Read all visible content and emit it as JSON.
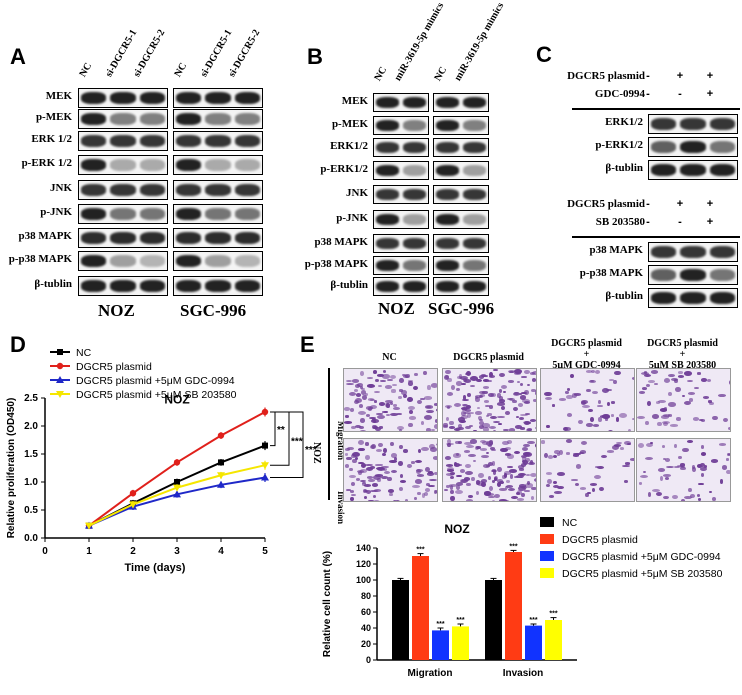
{
  "panels": {
    "A": {
      "label": "A",
      "lanes": [
        "NC",
        "si-DGCR5-1",
        "si-DGCR5-2"
      ],
      "rows": [
        "MEK",
        "p-MEK",
        "ERK 1/2",
        "p-ERK 1/2",
        "JNK",
        "p-JNK",
        "p38 MAPK",
        "p-p38 MAPK",
        "β-tublin"
      ],
      "cells": [
        "NOZ",
        "SGC-996"
      ]
    },
    "B": {
      "label": "B",
      "lanes": [
        "NC",
        "miR-3619-5p mimics"
      ],
      "rows": [
        "MEK",
        "p-MEK",
        "ERK1/2",
        "p-ERK1/2",
        "JNK",
        "p-JNK",
        "p38 MAPK",
        "p-p38 MAPK",
        "β-tublin"
      ],
      "cells": [
        "NOZ",
        "SGC-996"
      ]
    },
    "C": {
      "label": "C",
      "top": {
        "treatments": [
          {
            "name": "DGCR5 plasmid",
            "marks": [
              "-",
              "+",
              "+"
            ]
          },
          {
            "name": "GDC-0994",
            "marks": [
              "-",
              "-",
              "+"
            ]
          }
        ],
        "rows": [
          "ERK1/2",
          "p-ERK1/2",
          "β-tublin"
        ]
      },
      "bottom": {
        "treatments": [
          {
            "name": "DGCR5 plasmid",
            "marks": [
              "-",
              "+",
              "+"
            ]
          },
          {
            "name": "SB 203580",
            "marks": [
              "-",
              "-",
              "+"
            ]
          }
        ],
        "rows": [
          "p38 MAPK",
          "p-p38 MAPK",
          "β-tublin"
        ]
      }
    },
    "D": {
      "label": "D",
      "subtitle": "NOZ",
      "legend": [
        "NC",
        "DGCR5 plasmid",
        "DGCR5 plasmid +5μM GDC-0994",
        "DGCR5 plasmid +5μM SB 203580"
      ],
      "significance": [
        "**",
        "***",
        "***"
      ]
    },
    "E": {
      "label": "E",
      "columns": [
        "NC",
        "DGCR5 plasmid",
        "DGCR5 plasmid\n+\n5μM GDC-0994",
        "DGCR5 plasmid\n+\n5μM SB 203580"
      ],
      "rows": [
        "Migration",
        "Invasion"
      ],
      "side_label": "NOZ",
      "bar_title": "NOZ",
      "legend": [
        "NC",
        "DGCR5 plasmid",
        "DGCR5 plasmid +5μM GDC-0994",
        "DGCR5 plasmid +5μM SB 203580"
      ],
      "stars": "***"
    }
  },
  "chart_data": [
    {
      "type": "line",
      "title": "NOZ",
      "xlabel": "Time (days)",
      "ylabel": "Relative proliferation (OD450)",
      "xlim": [
        0,
        5
      ],
      "ylim": [
        0,
        2.5
      ],
      "x": [
        1,
        2,
        3,
        4,
        5
      ],
      "series": [
        {
          "name": "NC",
          "color": "#000000",
          "values": [
            0.22,
            0.62,
            1.0,
            1.35,
            1.65
          ]
        },
        {
          "name": "DGCR5 plasmid",
          "color": "#e0201b",
          "values": [
            0.22,
            0.8,
            1.35,
            1.83,
            2.25
          ]
        },
        {
          "name": "DGCR5 plasmid +5μM GDC-0994",
          "color": "#1f28c8",
          "values": [
            0.22,
            0.56,
            0.78,
            0.95,
            1.08
          ]
        },
        {
          "name": "DGCR5 plasmid +5μM SB 203580",
          "color": "#f5e600",
          "values": [
            0.22,
            0.6,
            0.9,
            1.12,
            1.3
          ]
        }
      ]
    },
    {
      "type": "bar",
      "title": "NOZ",
      "xlabel": "",
      "ylabel": "Relative cell count (%)",
      "ylim": [
        0,
        140
      ],
      "categories": [
        "Migration",
        "Invasion"
      ],
      "series": [
        {
          "name": "NC",
          "color": "#000000",
          "values": [
            100,
            100
          ]
        },
        {
          "name": "DGCR5 plasmid",
          "color": "#ff3b14",
          "values": [
            130,
            135
          ]
        },
        {
          "name": "DGCR5 plasmid +5μM GDC-0994",
          "color": "#1133ff",
          "values": [
            37,
            43
          ]
        },
        {
          "name": "DGCR5 plasmid +5μM SB 203580",
          "color": "#ffff00",
          "values": [
            42,
            50
          ]
        }
      ]
    }
  ]
}
